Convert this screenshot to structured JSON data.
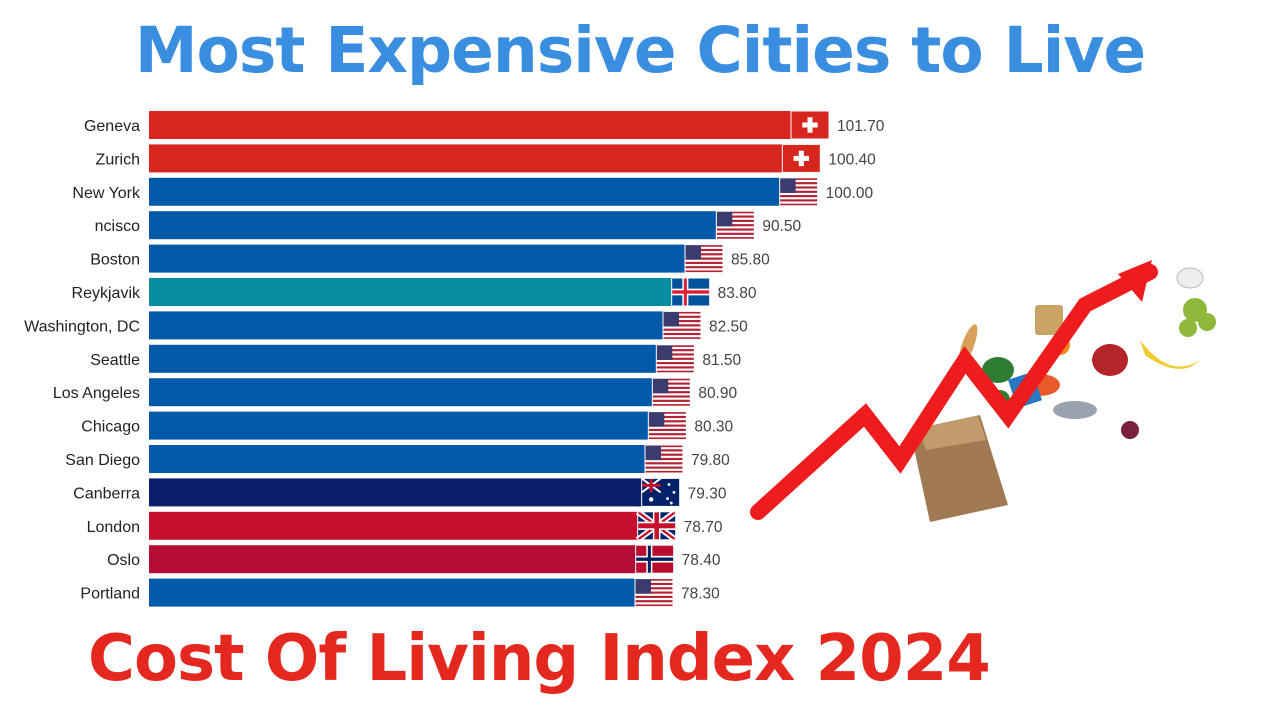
{
  "title": "Most Expensive Cities to Live",
  "subtitle": "Cost Of Living Index 2024",
  "colors": {
    "title": "#3a8ee0",
    "subtitle": "#e5281f",
    "switzerland": "#d7261e",
    "usa": "#005aa8",
    "iceland": "#0a8d9f",
    "australia": "#0b1f6e",
    "uk": "#c8102e",
    "norway": "#b40c32"
  },
  "chart_data": {
    "type": "bar",
    "orientation": "horizontal",
    "categories": [
      "Geneva",
      "Zurich",
      "New York",
      "ncisco",
      "Boston",
      "Reykjavik",
      "Washington, DC",
      "Seattle",
      "Los Angeles",
      "Chicago",
      "San Diego",
      "Canberra",
      "London",
      "Oslo",
      "Portland"
    ],
    "values": [
      101.7,
      100.4,
      100.0,
      90.5,
      85.8,
      83.8,
      82.5,
      81.5,
      80.9,
      80.3,
      79.8,
      79.3,
      78.7,
      78.4,
      78.3
    ],
    "value_labels": [
      "101.70",
      "100.40",
      "100.00",
      "90.50",
      "85.80",
      "83.80",
      "82.50",
      "81.50",
      "80.90",
      "80.30",
      "79.80",
      "79.30",
      "78.70",
      "78.40",
      "78.30"
    ],
    "countries": [
      "switzerland",
      "switzerland",
      "usa",
      "usa",
      "usa",
      "iceland",
      "usa",
      "usa",
      "usa",
      "usa",
      "usa",
      "australia",
      "uk",
      "norway",
      "usa"
    ],
    "xlim": [
      0,
      101.7
    ],
    "grid": false,
    "legend": "none"
  },
  "illustration": {
    "description_icon": "rising-arrow-groceries-icon"
  }
}
